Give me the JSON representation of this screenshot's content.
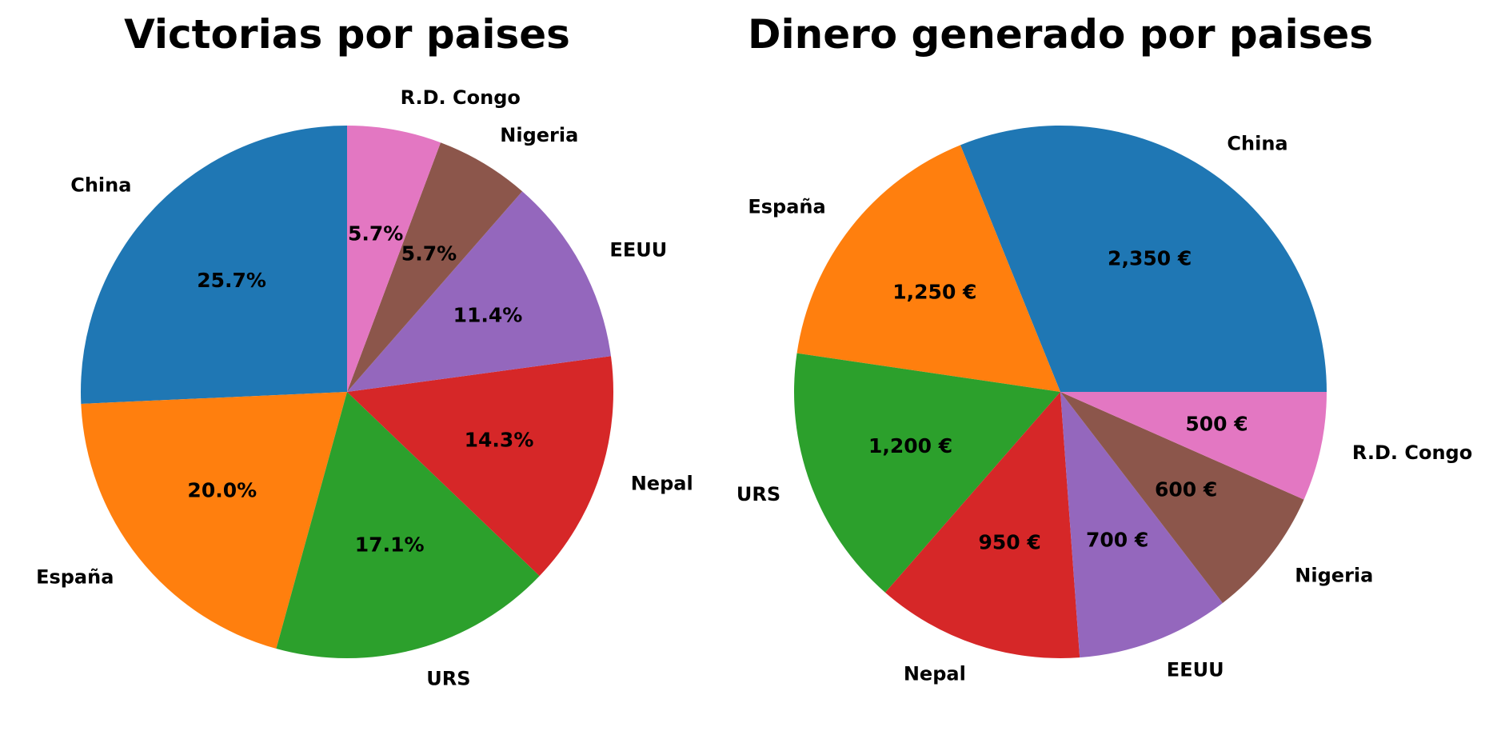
{
  "chart_data": [
    {
      "type": "pie",
      "title": "Victorias por paises",
      "categories": [
        "China",
        "España",
        "URS",
        "Nepal",
        "EEUU",
        "Nigeria",
        "R.D. Congo"
      ],
      "values": [
        9,
        7,
        6,
        5,
        4,
        2,
        2
      ],
      "data_labels": [
        "25.7%",
        "20.0%",
        "17.1%",
        "14.3%",
        "11.4%",
        "5.7%",
        "5.7%"
      ],
      "colors": [
        "#1f77b4",
        "#ff7f0e",
        "#2ca02c",
        "#d62728",
        "#9467bd",
        "#8c564b",
        "#e377c2"
      ],
      "start_angle": 90,
      "direction": "counterclockwise"
    },
    {
      "type": "pie",
      "title": "Dinero generado por paises",
      "categories": [
        "China",
        "España",
        "URS",
        "Nepal",
        "EEUU",
        "Nigeria",
        "R.D. Congo"
      ],
      "values": [
        2350,
        1250,
        1200,
        950,
        700,
        600,
        500
      ],
      "data_labels": [
        "2,350 €",
        "1,250 €",
        "1,200 €",
        "950 €",
        "700 €",
        "600 €",
        "500 €"
      ],
      "colors": [
        "#1f77b4",
        "#ff7f0e",
        "#2ca02c",
        "#d62728",
        "#9467bd",
        "#8c564b",
        "#e377c2"
      ],
      "start_angle": 0,
      "direction": "counterclockwise"
    }
  ]
}
